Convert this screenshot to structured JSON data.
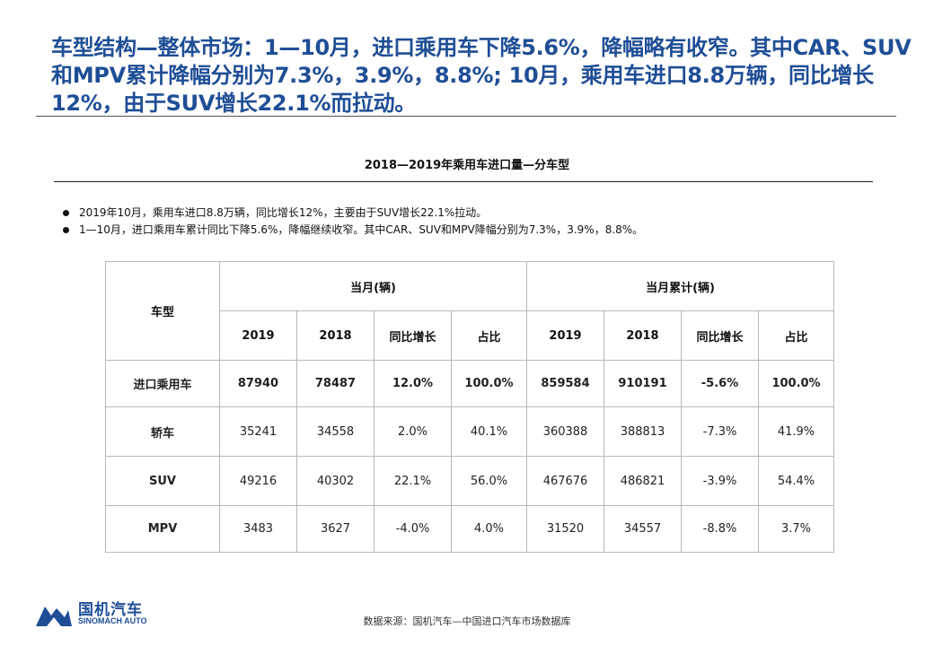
{
  "headline": "车型结构—整体市场：1—10月，进口乘用车下降5.6%，降幅略有收窄。其中CAR、SUV和MPV累计降幅分别为7.3%，3.9%，8.8%; 10月，乘用车进口8.8万辆，同比增长12%，由于SUV增长22.1%而拉动。",
  "chart_title": "2018—2019年乘用车进口量—分车型",
  "bullets": [
    "2019年10月，乘用车进口8.8万辆，同比增长12%，主要由于SUV增长22.1%拉动。",
    "1—10月，进口乘用车累计同比下降5.6%，降幅继续收窄。其中CAR、SUV和MPV降幅分别为7.3%，3.9%，8.8%。"
  ],
  "table": {
    "type_header": "车型",
    "group_month": "当月(辆)",
    "group_cumulative": "当月累计(辆)",
    "sub_headers": [
      "2019",
      "2018",
      "同比增长",
      "占比",
      "2019",
      "2018",
      "同比增长",
      "占比"
    ],
    "rows": [
      {
        "type": "进口乘用车",
        "cells": [
          "87940",
          "78487",
          "12.0%",
          "100.0%",
          "859584",
          "910191",
          "-5.6%",
          "100.0%"
        ]
      },
      {
        "type": "轿车",
        "cells": [
          "35241",
          "34558",
          "2.0%",
          "40.1%",
          "360388",
          "388813",
          "-7.3%",
          "41.9%"
        ]
      },
      {
        "type": "SUV",
        "cells": [
          "49216",
          "40302",
          "22.1%",
          "56.0%",
          "467676",
          "486821",
          "-3.9%",
          "54.4%"
        ]
      },
      {
        "type": "MPV",
        "cells": [
          "3483",
          "3627",
          "-4.0%",
          "4.0%",
          "31520",
          "34557",
          "-8.8%",
          "3.7%"
        ]
      }
    ]
  },
  "logo": {
    "name_cn": "国机汽车",
    "name_en": "SINOMACH AUTO",
    "color": "#1f4e96"
  },
  "source": "数据来源：国机汽车—中国进口汽车市场数据库"
}
